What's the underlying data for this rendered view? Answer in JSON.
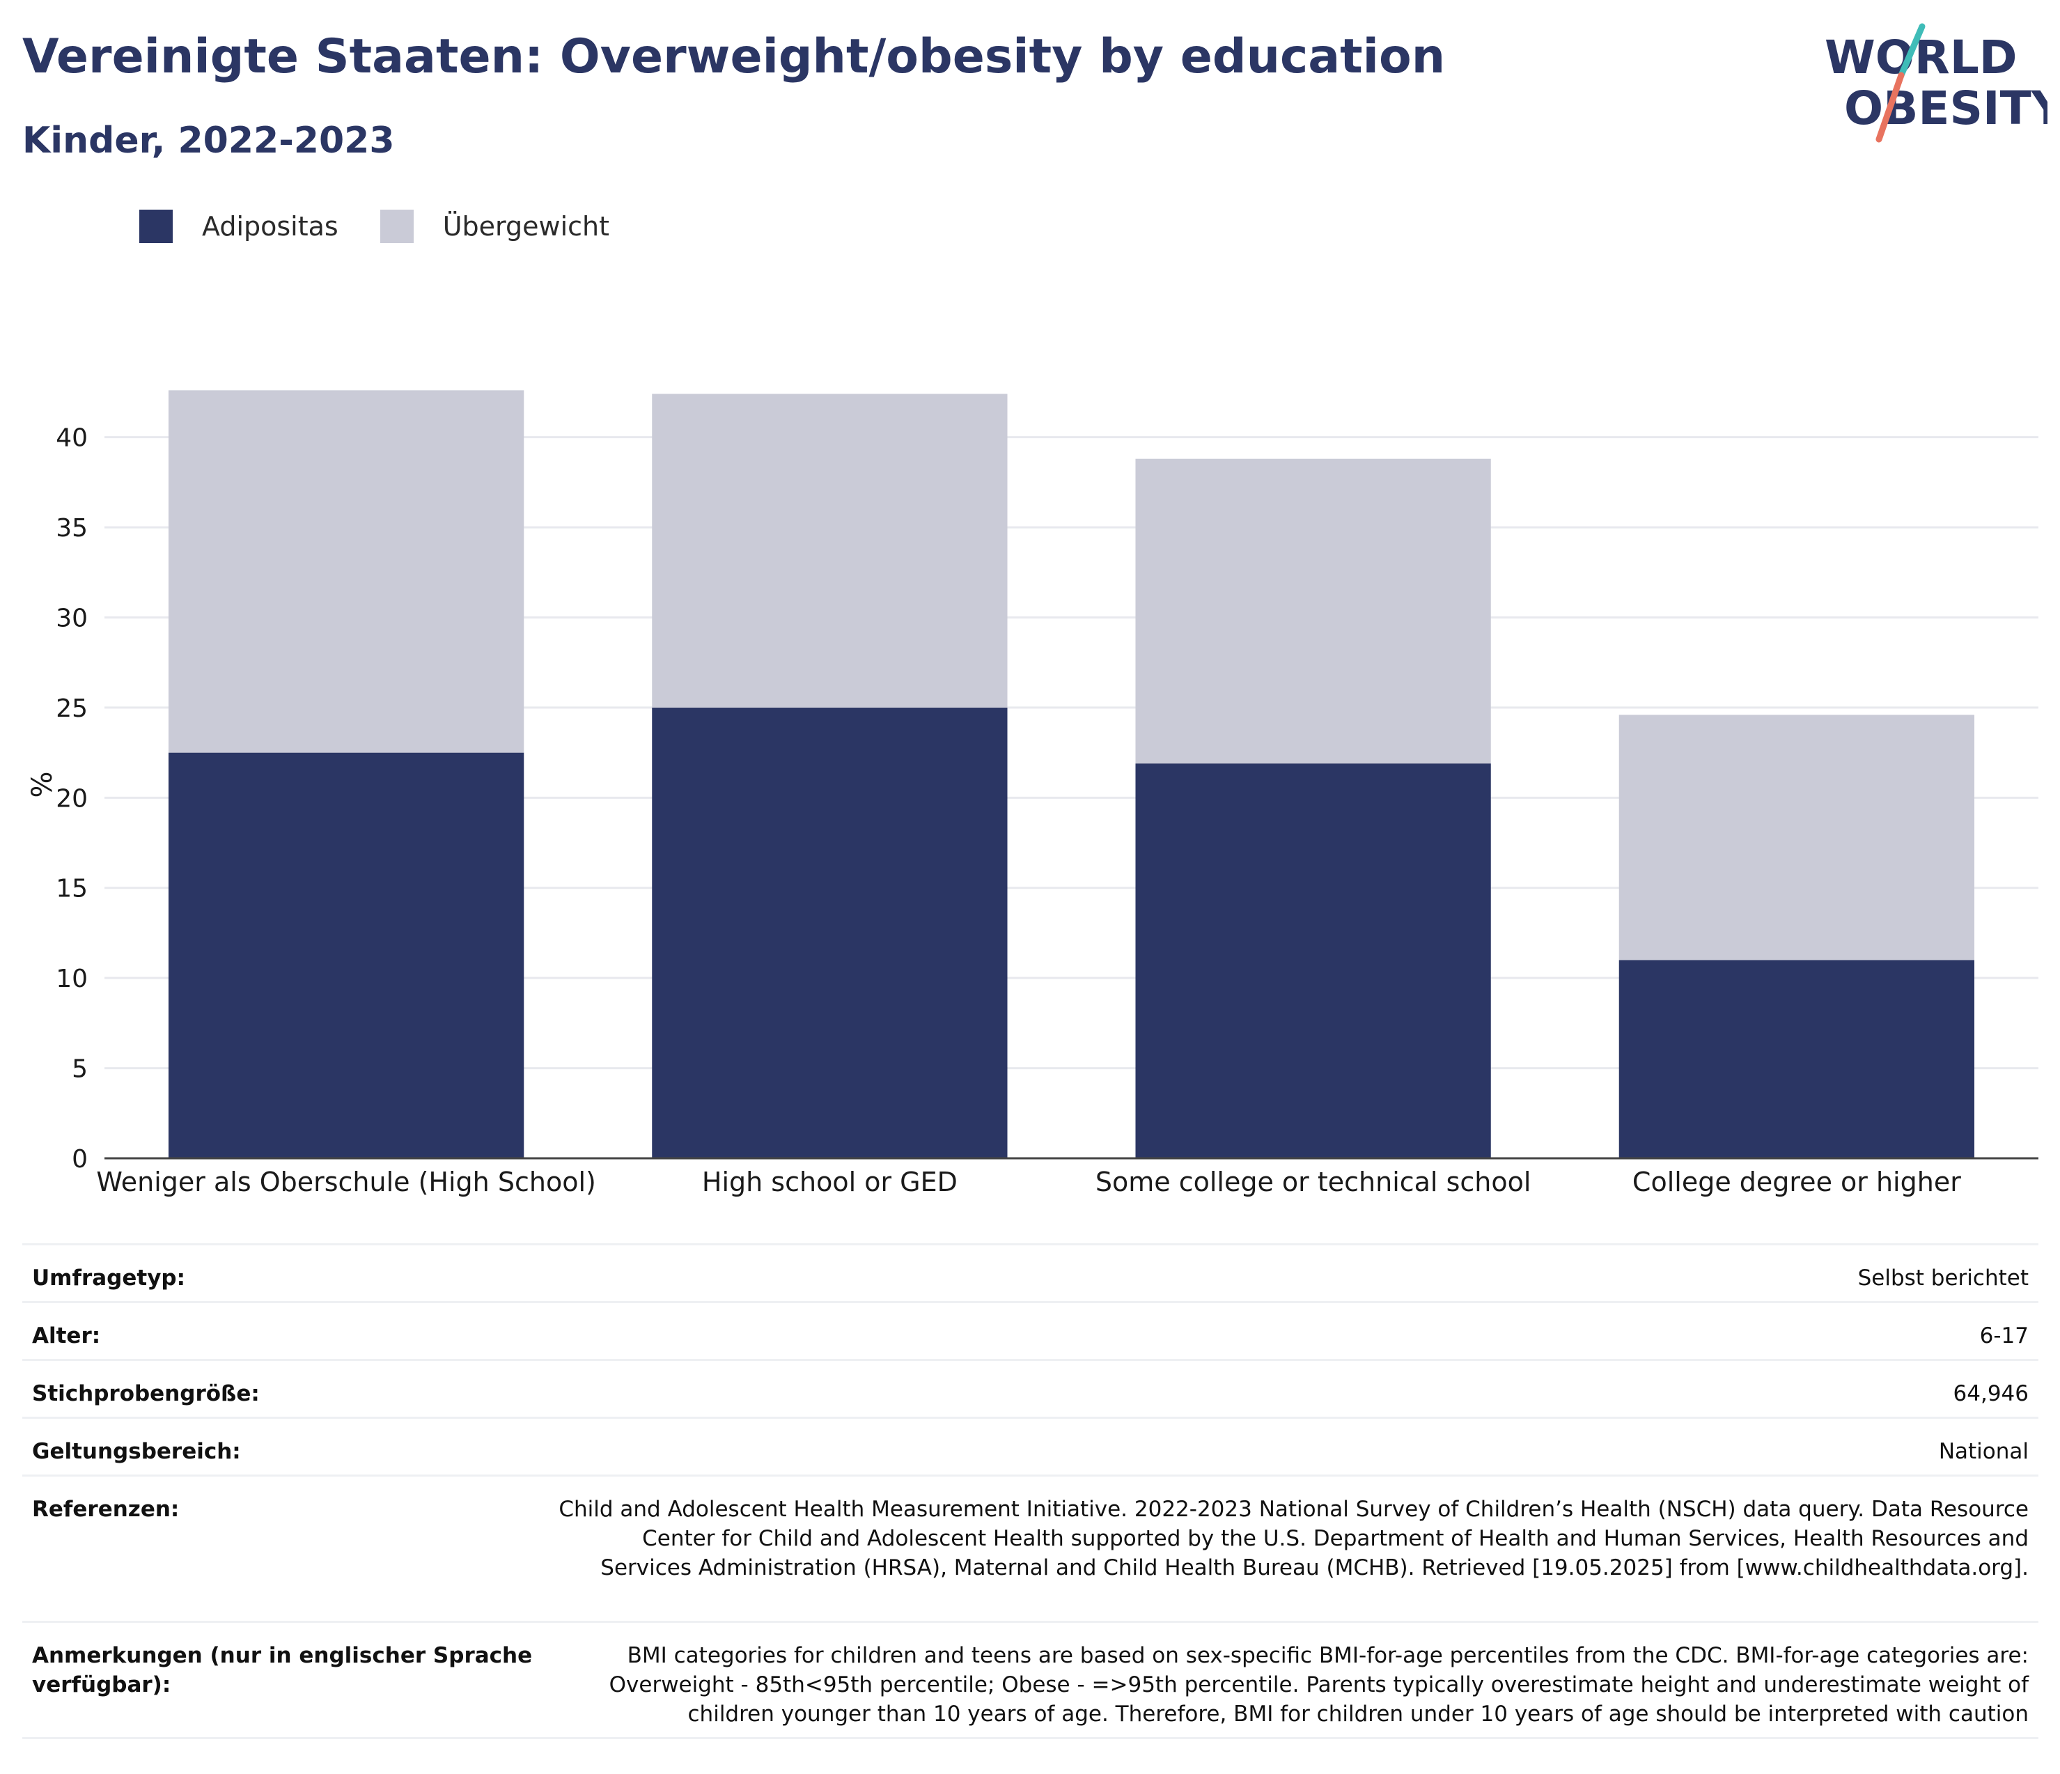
{
  "header": {
    "title": "Vereinigte Staaten: Overweight/obesity by education",
    "subtitle": "Kinder, 2022-2023"
  },
  "logo": {
    "line1": "WORLD",
    "line2": "OBESITY"
  },
  "colors": {
    "obesity": "#2b3664",
    "overweight": "#cacbd7",
    "title": "#2b3664",
    "logo_teal": "#3fbcb8",
    "logo_coral": "#e8735f"
  },
  "chart_data": {
    "type": "bar",
    "stacked": true,
    "categories": [
      "Weniger als Oberschule (High School)",
      "High school or GED",
      "Some college or technical school",
      "College degree or higher"
    ],
    "series": [
      {
        "name": "Adipositas",
        "values": [
          22.5,
          25.0,
          21.9,
          11.0
        ]
      },
      {
        "name": "Übergewicht",
        "values": [
          20.1,
          17.4,
          16.9,
          13.6
        ]
      }
    ],
    "ylabel": "%",
    "ylim": [
      0,
      43
    ],
    "yticks": [
      0,
      5,
      10,
      15,
      20,
      25,
      30,
      35,
      40
    ],
    "grid": true,
    "legend": "top-left"
  },
  "info": {
    "survey_type_label": "Umfragetyp:",
    "survey_type_value": "Selbst berichtet",
    "age_label": "Alter:",
    "age_value": "6-17",
    "sample_label": "Stichprobengröße:",
    "sample_value": "64,946",
    "scope_label": "Geltungsbereich:",
    "scope_value": "National",
    "references_label": "Referenzen:",
    "references_value": "Child and Adolescent Health Measurement Initiative. 2022-2023 National Survey of Children’s Health (NSCH) data query. Data Resource Center for Child and Adolescent Health supported by the U.S. Department of Health and Human Services, Health Resources and Services Administration (HRSA), Maternal and Child Health Bureau (MCHB). Retrieved [19.05.2025] from [www.childhealthdata.org].",
    "notes_label": "Anmerkungen (nur in englischer Sprache verfügbar):",
    "notes_value": "BMI categories for children and teens are based on sex-specific BMI-for-age percentiles from the CDC. BMI-for-age categories are: Overweight - 85th<95th percentile; Obese - =>95th percentile. Parents typically overestimate height and underestimate weight of children younger than 10 years of age. Therefore, BMI for children under 10 years of age should be interpreted with caution"
  }
}
